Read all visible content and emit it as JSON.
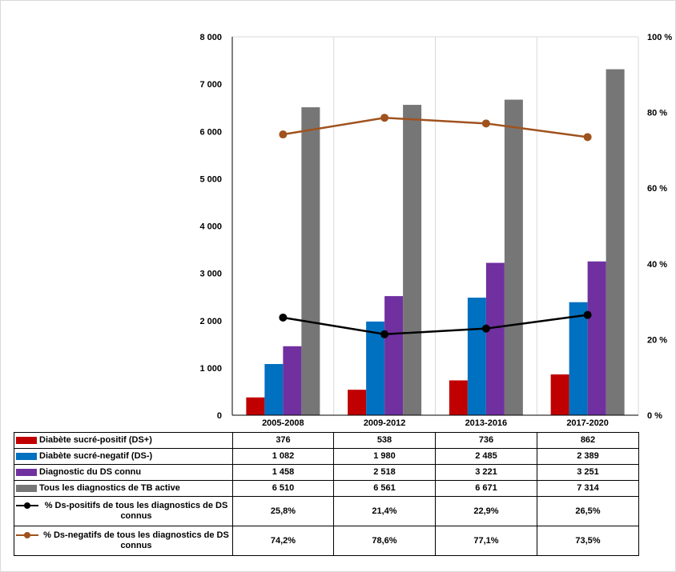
{
  "chart_data": {
    "type": "bar",
    "categories": [
      "2005-2008",
      "2009-2012",
      "2013-2016",
      "2017-2020"
    ],
    "series": [
      {
        "name": "Diabète sucré-positif (DS+)",
        "kind": "bar",
        "axis": "left",
        "color": "#c00000",
        "values": [
          376,
          538,
          736,
          862
        ],
        "labels": [
          "376",
          "538",
          "736",
          "862"
        ]
      },
      {
        "name": "Diabète sucré-negatif (DS-)",
        "kind": "bar",
        "axis": "left",
        "color": "#0070c0",
        "values": [
          1082,
          1980,
          2485,
          2389
        ],
        "labels": [
          "1 082",
          "1 980",
          "2 485",
          "2 389"
        ]
      },
      {
        "name": "Diagnostic du DS connu",
        "kind": "bar",
        "axis": "left",
        "color": "#7030a0",
        "values": [
          1458,
          2518,
          3221,
          3251
        ],
        "labels": [
          "1 458",
          "2 518",
          "3 221",
          "3 251"
        ]
      },
      {
        "name": "Tous les diagnostics de TB active",
        "kind": "bar",
        "axis": "left",
        "color": "#767676",
        "values": [
          6510,
          6561,
          6671,
          7314
        ],
        "labels": [
          "6 510",
          "6 561",
          "6 671",
          "7 314"
        ]
      },
      {
        "name": "% Ds-positifs de tous les diagnostics de DS connus",
        "kind": "line",
        "axis": "right",
        "color": "#000000",
        "values": [
          25.8,
          21.4,
          22.9,
          26.5
        ],
        "labels": [
          "25,8%",
          "21,4%",
          "22,9%",
          "26,5%"
        ]
      },
      {
        "name": "% Ds-negatifs de tous les diagnostics de DS connus",
        "kind": "line",
        "axis": "right",
        "color": "#a0521e",
        "values": [
          74.2,
          78.6,
          77.1,
          73.5
        ],
        "labels": [
          "74,2%",
          "78,6%",
          "77,1%",
          "73,5%"
        ]
      }
    ],
    "y_left": {
      "min": 0,
      "max": 8000,
      "step": 1000,
      "ticks": [
        "0",
        "1 000",
        "2 000",
        "3 000",
        "4 000",
        "5 000",
        "6 000",
        "7 000",
        "8 000"
      ]
    },
    "y_right": {
      "min": 0,
      "max": 100,
      "step": 20,
      "ticks": [
        "0 %",
        "20 %",
        "40 %",
        "60 %",
        "80 %",
        "100 %"
      ]
    },
    "grid": true,
    "legend": "data-table-below"
  }
}
